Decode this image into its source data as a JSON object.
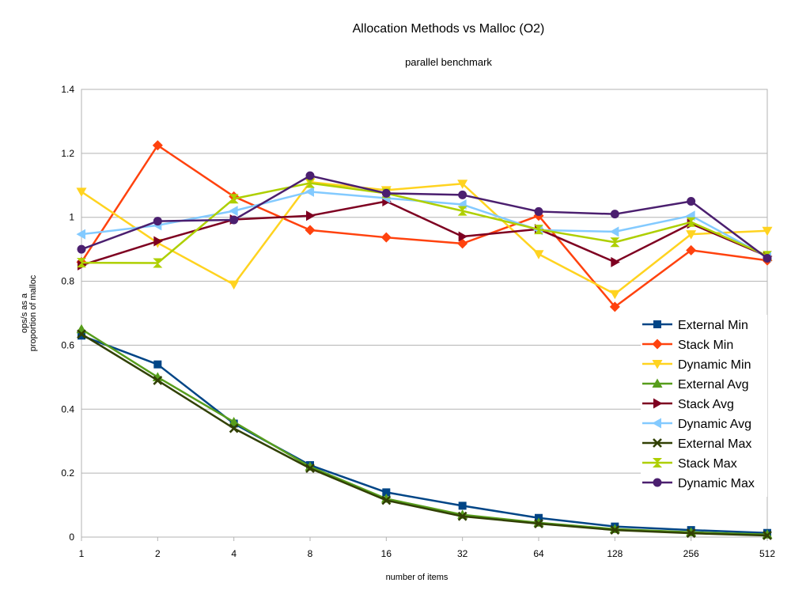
{
  "chart_data": {
    "type": "line",
    "title": "Allocation Methods vs Malloc (O2)",
    "subtitle": "parallel benchmark",
    "xlabel": "number of items",
    "ylabel_line1": "ops/s as a",
    "ylabel_line2": "proportion of malloc",
    "categories": [
      "1",
      "2",
      "4",
      "8",
      "16",
      "32",
      "64",
      "128",
      "256",
      "512"
    ],
    "ylim": [
      0,
      1.4
    ],
    "yticks": [
      "0",
      "0.2",
      "0.4",
      "0.6",
      "0.8",
      "1",
      "1.2",
      "1.4"
    ],
    "grid": true,
    "legend_position": "right",
    "series": [
      {
        "name": "External Min",
        "color": "#004586",
        "marker": "square",
        "values": [
          0.63,
          0.54,
          0.355,
          0.225,
          0.14,
          0.098,
          0.06,
          0.033,
          0.022,
          0.013
        ]
      },
      {
        "name": "Stack Min",
        "color": "#ff420e",
        "marker": "diamond",
        "values": [
          0.86,
          1.225,
          1.065,
          0.96,
          0.937,
          0.918,
          1.005,
          0.72,
          0.897,
          0.865
        ]
      },
      {
        "name": "Dynamic Min",
        "color": "#ffd320",
        "marker": "triangle-down",
        "values": [
          1.08,
          0.92,
          0.79,
          1.11,
          1.085,
          1.105,
          0.885,
          0.76,
          0.947,
          0.958
        ]
      },
      {
        "name": "External Avg",
        "color": "#579d1c",
        "marker": "triangle-up",
        "values": [
          0.65,
          0.5,
          0.36,
          0.22,
          0.12,
          0.07,
          0.045,
          0.025,
          0.015,
          0.008
        ]
      },
      {
        "name": "Stack Avg",
        "color": "#7e0021",
        "marker": "triangle-right",
        "values": [
          0.85,
          0.925,
          0.993,
          1.005,
          1.05,
          0.94,
          0.963,
          0.86,
          0.98,
          0.878
        ]
      },
      {
        "name": "Dynamic Avg",
        "color": "#83caff",
        "marker": "triangle-left",
        "values": [
          0.947,
          0.975,
          1.02,
          1.08,
          1.06,
          1.04,
          0.96,
          0.955,
          1.005,
          0.876
        ]
      },
      {
        "name": "External Max",
        "color": "#314004",
        "marker": "x",
        "values": [
          0.635,
          0.49,
          0.34,
          0.215,
          0.115,
          0.065,
          0.042,
          0.022,
          0.012,
          0.005
        ]
      },
      {
        "name": "Stack Max",
        "color": "#aecf00",
        "marker": "hourglass",
        "values": [
          0.858,
          0.857,
          1.058,
          1.107,
          1.075,
          1.02,
          0.962,
          0.922,
          0.985,
          0.88
        ]
      },
      {
        "name": "Dynamic Max",
        "color": "#4b1f6f",
        "marker": "circle",
        "values": [
          0.9,
          0.988,
          0.992,
          1.13,
          1.075,
          1.07,
          1.018,
          1.01,
          1.05,
          0.872
        ]
      }
    ]
  }
}
